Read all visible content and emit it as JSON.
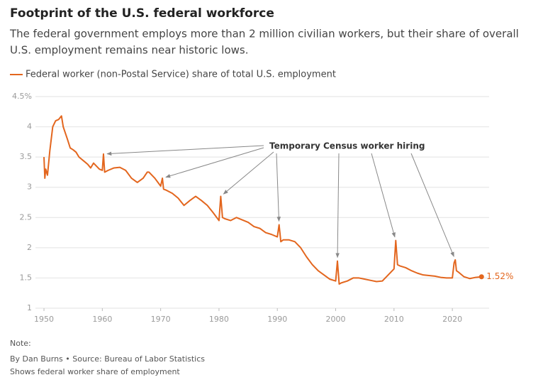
{
  "chart_data": {
    "type": "line",
    "title": "Footprint of the U.S. federal workforce",
    "subtitle": [
      "The federal government employs more than 2 million civilian workers, but their share of overall",
      "U.S. employment remains near historic lows."
    ],
    "annotation": "Temporary Census worker hiring",
    "note": "Note:",
    "source": "By Dan Burns • Source: Bureau of Labor Statistics",
    "footnote": "Shows federal worker share of employment",
    "xlim": [
      1949,
      2026
    ],
    "xticks": [
      1950,
      1960,
      1970,
      1980,
      1990,
      2000,
      2010,
      2020
    ],
    "ylim": [
      1,
      4.5
    ],
    "yticks": [
      1,
      1.5,
      2,
      2.5,
      3,
      3.5,
      4,
      {
        "value": 4.5,
        "label": "4.5%"
      }
    ],
    "grid": true,
    "x": [
      1950.0,
      1950.15,
      1950.3,
      1950.6,
      1951.0,
      1951.5,
      1952.0,
      1952.5,
      1953.0,
      1953.3,
      1954.0,
      1954.5,
      1955.0,
      1955.5,
      1956.0,
      1957.0,
      1957.5,
      1958.0,
      1958.5,
      1959.0,
      1959.5,
      1960.0,
      1960.2,
      1960.4,
      1961.0,
      1962.0,
      1963.0,
      1964.0,
      1965.0,
      1966.0,
      1967.0,
      1967.7,
      1968.0,
      1969.0,
      1970.0,
      1970.3,
      1970.5,
      1971.0,
      1972.0,
      1973.0,
      1974.0,
      1975.0,
      1976.0,
      1977.0,
      1978.0,
      1979.0,
      1980.0,
      1980.3,
      1980.6,
      1981.0,
      1982.0,
      1983.0,
      1984.0,
      1985.0,
      1986.0,
      1987.0,
      1988.0,
      1989.0,
      1990.0,
      1990.3,
      1990.6,
      1991.0,
      1992.0,
      1993.0,
      1994.0,
      1995.0,
      1996.0,
      1997.0,
      1998.0,
      1999.0,
      2000.0,
      2000.3,
      2000.6,
      2001.0,
      2002.0,
      2003.0,
      2004.0,
      2005.0,
      2006.0,
      2007.0,
      2008.0,
      2009.0,
      2010.0,
      2010.3,
      2010.6,
      2011.0,
      2012.0,
      2013.0,
      2014.0,
      2015.0,
      2016.0,
      2017.0,
      2018.0,
      2019.0,
      2020.0,
      2020.3,
      2020.5,
      2020.7,
      2021.0,
      2022.0,
      2023.0,
      2024.0,
      2025.0
    ],
    "series": [
      {
        "name": "Federal worker (non-Postal Service) share of total U.S. employment",
        "color": "#e3661e",
        "values": [
          3.5,
          3.15,
          3.3,
          3.2,
          3.6,
          4.0,
          4.1,
          4.12,
          4.18,
          4.0,
          3.8,
          3.65,
          3.62,
          3.58,
          3.5,
          3.42,
          3.38,
          3.32,
          3.4,
          3.35,
          3.3,
          3.28,
          3.55,
          3.25,
          3.28,
          3.32,
          3.33,
          3.28,
          3.15,
          3.08,
          3.15,
          3.25,
          3.25,
          3.15,
          3.02,
          3.15,
          2.97,
          2.95,
          2.9,
          2.82,
          2.7,
          2.78,
          2.85,
          2.78,
          2.7,
          2.58,
          2.45,
          2.85,
          2.5,
          2.48,
          2.45,
          2.5,
          2.46,
          2.42,
          2.35,
          2.32,
          2.25,
          2.22,
          2.18,
          2.38,
          2.1,
          2.13,
          2.13,
          2.1,
          2.0,
          1.85,
          1.72,
          1.62,
          1.55,
          1.48,
          1.45,
          1.78,
          1.4,
          1.42,
          1.45,
          1.5,
          1.5,
          1.48,
          1.46,
          1.44,
          1.45,
          1.55,
          1.65,
          2.12,
          1.72,
          1.7,
          1.67,
          1.62,
          1.58,
          1.55,
          1.54,
          1.53,
          1.51,
          1.5,
          1.5,
          1.75,
          1.8,
          1.62,
          1.6,
          1.52,
          1.49,
          1.51,
          1.52
        ],
        "value_labels": [
          null,
          null,
          null,
          null,
          null,
          null,
          null,
          null,
          null,
          null,
          null,
          null,
          null,
          null,
          null,
          null,
          null,
          null,
          null,
          null,
          null,
          null,
          null,
          null,
          null,
          null,
          null,
          null,
          null,
          null,
          null,
          null,
          null,
          null,
          null,
          null,
          null,
          null,
          null,
          null,
          null,
          null,
          null,
          null,
          null,
          null,
          null,
          null,
          null,
          null,
          null,
          null,
          null,
          null,
          null,
          null,
          null,
          null,
          null,
          null,
          null,
          null,
          null,
          null,
          null,
          null,
          null,
          null,
          null,
          null,
          null,
          null,
          null,
          null,
          null,
          null,
          null,
          null,
          null,
          null,
          null,
          null,
          null,
          null,
          null,
          null,
          null,
          null,
          null,
          null,
          null,
          null,
          null,
          null,
          null,
          null,
          null,
          null,
          null,
          null,
          null,
          null,
          "1.52%"
        ]
      }
    ]
  }
}
